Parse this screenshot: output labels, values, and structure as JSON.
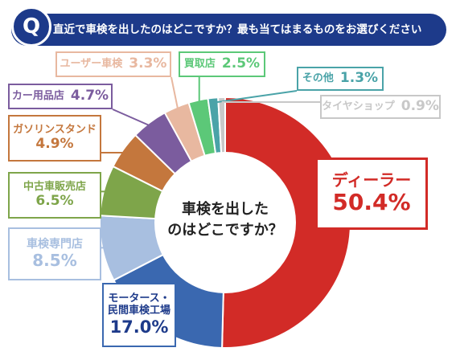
{
  "question": {
    "badge": "Q",
    "text": "直近で車検を出したのはどこですか？最も当てはまるものをお選びください"
  },
  "center_text": {
    "line1": "車検を出した",
    "line2": "のはどこですか？"
  },
  "chart_data": {
    "type": "pie",
    "title": "直近で車検を出したのはどこですか？最も当てはまるものをお選びください",
    "unit": "%",
    "slices": [
      {
        "label": "ディーラー",
        "value": 50.4,
        "display": "50.4%",
        "color": "#d22b27"
      },
      {
        "label": "モータース・民間車検工場",
        "value": 17.0,
        "display": "17.0%",
        "color": "#3a68b0"
      },
      {
        "label": "車検専門店",
        "value": 8.5,
        "display": "8.5%",
        "color": "#a8bfe0"
      },
      {
        "label": "中古車販売店",
        "value": 6.5,
        "display": "6.5%",
        "color": "#7ea54a"
      },
      {
        "label": "ガソリンスタンド",
        "value": 4.9,
        "display": "4.9%",
        "color": "#c4773d"
      },
      {
        "label": "カー用品店",
        "value": 4.7,
        "display": "4.7%",
        "color": "#7b5c9e"
      },
      {
        "label": "ユーザー車検",
        "value": 3.3,
        "display": "3.3%",
        "color": "#e8b8a0"
      },
      {
        "label": "買取店",
        "value": 2.5,
        "display": "2.5%",
        "color": "#5cc878"
      },
      {
        "label": "その他",
        "value": 1.3,
        "display": "1.3%",
        "color": "#4aa3a8"
      },
      {
        "label": "タイヤショップ",
        "value": 0.9,
        "display": "0.9%",
        "color": "#c8c8c8"
      }
    ]
  }
}
